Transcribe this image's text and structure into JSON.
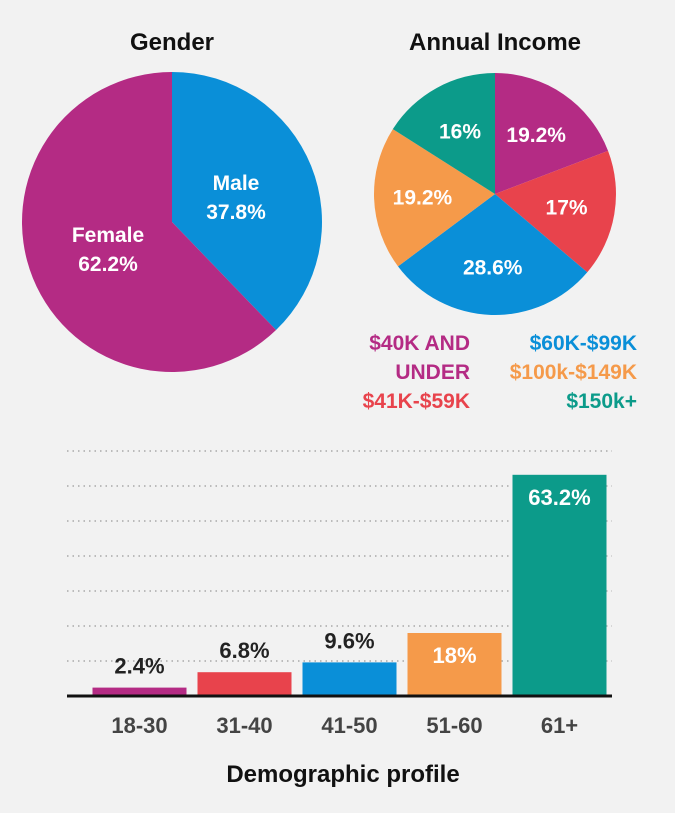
{
  "chart_data": [
    {
      "type": "pie",
      "title": "Gender",
      "slices": [
        {
          "category": "Male",
          "percent_label": "37.8%",
          "value": 37.8,
          "color": "#0a8fd8"
        },
        {
          "category": "Female",
          "percent_label": "62.2%",
          "value": 62.2,
          "color": "#b42b84"
        }
      ]
    },
    {
      "type": "pie",
      "title": "Annual Income",
      "slices": [
        {
          "label": "19.2%",
          "value": 19.2,
          "color": "#b42b84"
        },
        {
          "label": "17%",
          "value": 17,
          "color": "#e8434c"
        },
        {
          "label": "28.6%",
          "value": 28.6,
          "color": "#0a8fd8"
        },
        {
          "label": "19.2%",
          "value": 19.2,
          "color": "#f59a4a"
        },
        {
          "label": "16%",
          "value": 16,
          "color": "#0c9b8a"
        }
      ],
      "legend": [
        {
          "lines": [
            "$40K AND",
            "UNDER"
          ],
          "color": "#b42b84"
        },
        {
          "lines": [
            "$41K-$59K"
          ],
          "color": "#e8434c"
        },
        {
          "lines": [
            "$60K-$99K"
          ],
          "color": "#0a8fd8"
        },
        {
          "lines": [
            "$100k-$149K"
          ],
          "color": "#f59a4a"
        },
        {
          "lines": [
            "$150k+"
          ],
          "color": "#0c9b8a"
        }
      ]
    },
    {
      "type": "bar",
      "xlabel": "Demographic profile",
      "categories": [
        "18-30",
        "31-40",
        "41-50",
        "51-60",
        "61+"
      ],
      "values": [
        2.4,
        6.8,
        9.6,
        18,
        63.2
      ],
      "value_labels": [
        "2.4%",
        "6.8%",
        "9.6%",
        "18%",
        "63.2%"
      ],
      "colors": [
        "#b42b84",
        "#e8434c",
        "#0a8fd8",
        "#f59a4a",
        "#0c9b8a"
      ],
      "ylim": [
        0,
        70
      ],
      "grid": true
    }
  ]
}
